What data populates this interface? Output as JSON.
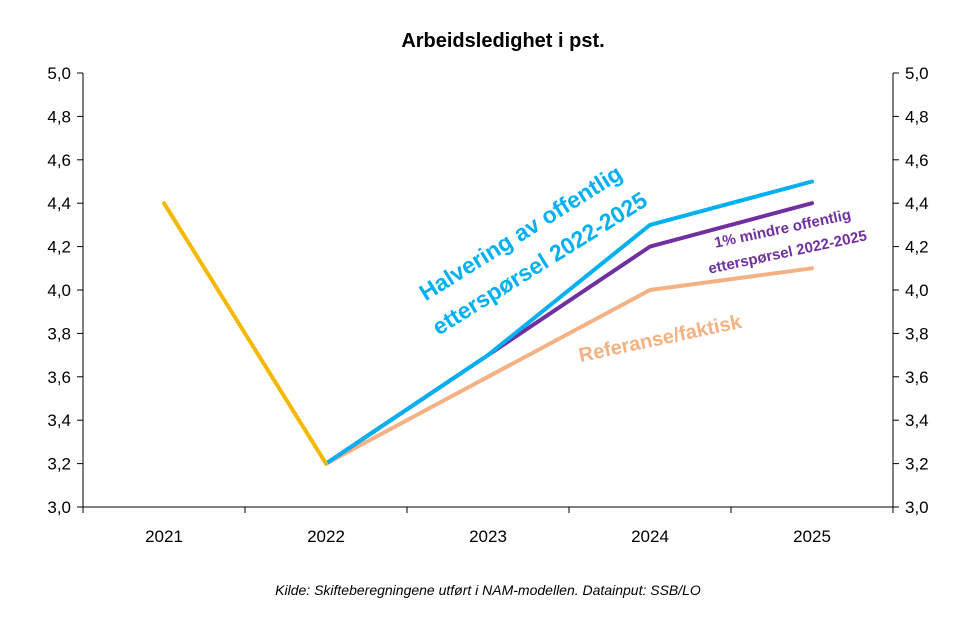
{
  "chart_data": {
    "type": "line",
    "title": "Arbeidsledighet i pst.",
    "source": "Kilde:  Skifteberegningene utført i NAM-modellen. Datainput: SSB/LO",
    "categories": [
      "2021",
      "2022",
      "2023",
      "2024",
      "2025"
    ],
    "ylim": [
      3.0,
      5.0
    ],
    "yticks": [
      "3,0",
      "3,2",
      "3,4",
      "3,6",
      "3,8",
      "4,0",
      "4,2",
      "4,4",
      "4,6",
      "4,8",
      "5,0"
    ],
    "ytick_values": [
      3.0,
      3.2,
      3.4,
      3.6,
      3.8,
      4.0,
      4.2,
      4.4,
      4.6,
      4.8,
      5.0
    ],
    "axes": "left and right y-axes with identical scale",
    "grid": false,
    "series": [
      {
        "name": "Referanse/faktisk",
        "color": "#F4B183",
        "values": [
          null,
          3.2,
          3.6,
          4.0,
          4.1
        ]
      },
      {
        "name": "1% mindre offentlig etterspørsel 2022-2025",
        "color": "#7030A0",
        "values": [
          null,
          3.2,
          3.7,
          4.2,
          4.4
        ]
      },
      {
        "name": "Halvering av offentlig etterspørsel 2022-2025",
        "color": "#00B0F0",
        "values": [
          null,
          3.2,
          3.7,
          4.3,
          4.5
        ]
      },
      {
        "name": "",
        "color": "#F5B800",
        "values": [
          4.4,
          3.2,
          null,
          null,
          null
        ]
      }
    ],
    "annotations": [
      {
        "lines": [
          "Halvering av offentlig",
          "etterspørsel 2022-2025"
        ],
        "color": "#00B0F0"
      },
      {
        "lines": [
          "1% mindre offentlig",
          "etterspørsel 2022-2025"
        ],
        "color": "#7030A0"
      },
      {
        "lines": [
          "Referanse/faktisk"
        ],
        "color": "#F4B183"
      }
    ]
  }
}
